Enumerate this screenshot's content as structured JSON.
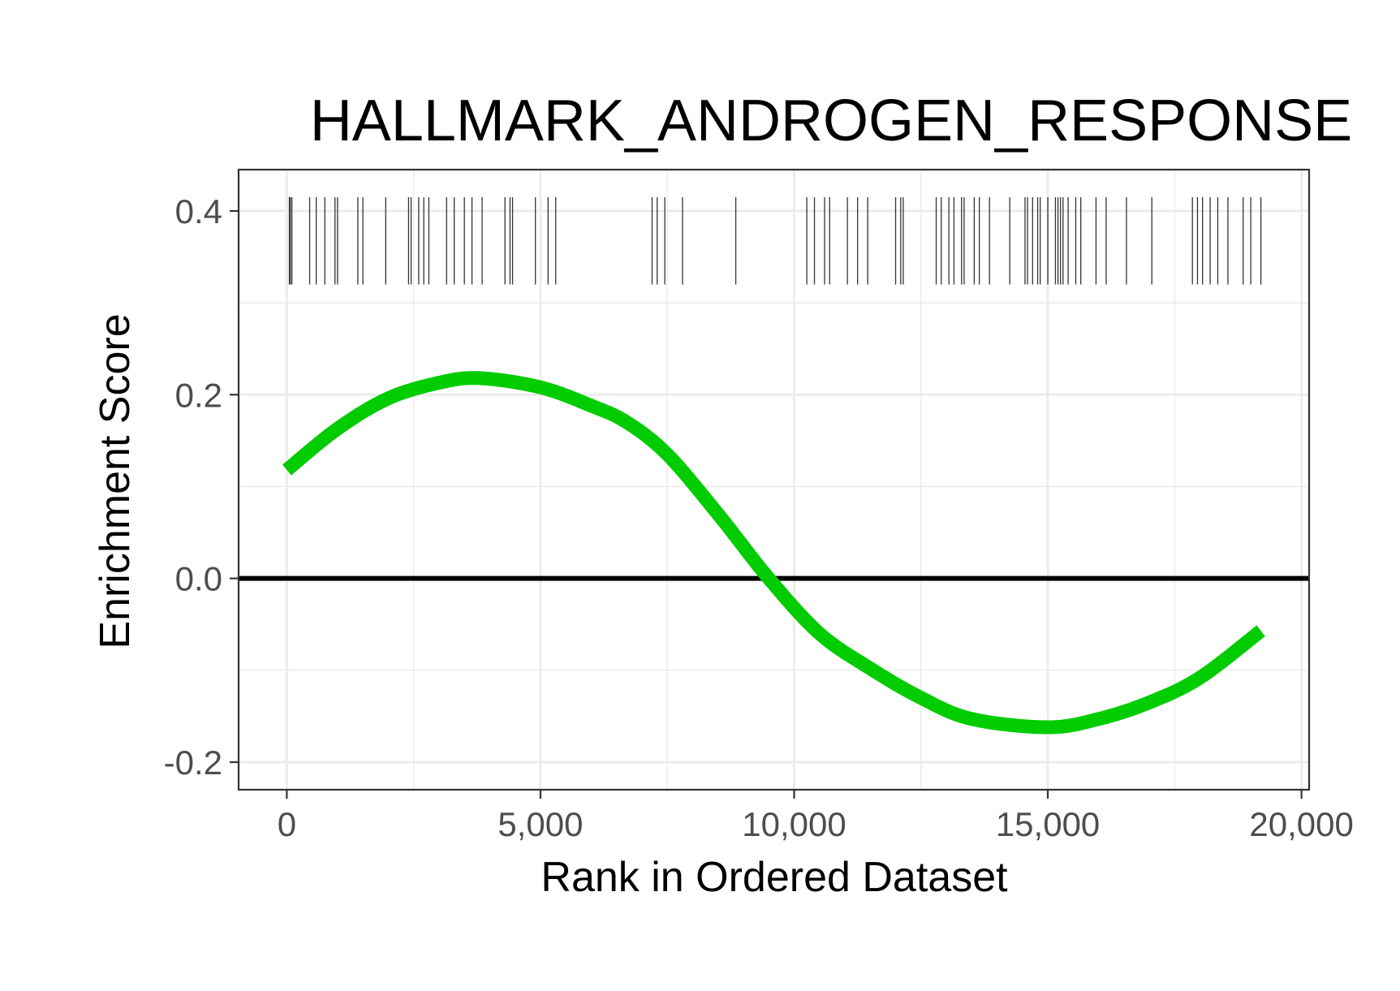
{
  "chart_data": {
    "type": "line",
    "title": "HALLMARK_ANDROGEN_RESPONSE",
    "xlabel": "Rank in Ordered Dataset",
    "ylabel": "Enrichment Score",
    "xlim": [
      -950,
      20150
    ],
    "ylim": [
      -0.23,
      0.445
    ],
    "x_ticks": [
      0,
      5000,
      10000,
      15000,
      20000
    ],
    "x_tick_labels": [
      "0",
      "5,000",
      "10,000",
      "15,000",
      "20,000"
    ],
    "y_ticks": [
      -0.2,
      0.0,
      0.2,
      0.4
    ],
    "y_tick_labels": [
      "-0.2",
      "0.0",
      "0.2",
      "0.4"
    ],
    "grid": true,
    "zero_line": 0,
    "colors": {
      "curve": "#00cc00",
      "zero_line": "#000000",
      "hits": "#333333",
      "grid": "#ebebeb",
      "border": "#333333"
    },
    "series": [
      {
        "values_x": [
          0,
          1000,
          2000,
          3000,
          3800,
          5000,
          6000,
          6700,
          7500,
          8500,
          9500,
          10500,
          11500,
          12500,
          13500,
          15000,
          16000,
          17000,
          18000,
          19200
        ],
        "values_y": [
          0.118,
          0.163,
          0.196,
          0.213,
          0.218,
          0.208,
          0.188,
          0.17,
          0.135,
          0.07,
          0.0,
          -0.06,
          -0.098,
          -0.13,
          -0.153,
          -0.162,
          -0.153,
          -0.135,
          -0.108,
          -0.057
        ]
      }
    ],
    "hit_band": [
      0.32,
      0.415
    ],
    "hits": [
      50,
      70,
      100,
      450,
      580,
      750,
      950,
      1000,
      1400,
      1500,
      1950,
      2400,
      2450,
      2600,
      2700,
      2800,
      3150,
      3300,
      3500,
      3650,
      3850,
      4300,
      4400,
      4450,
      4900,
      5150,
      5300,
      7200,
      7300,
      7450,
      7800,
      8850,
      10250,
      10400,
      10600,
      10700,
      11050,
      11250,
      11450,
      12000,
      12100,
      12150,
      12800,
      12900,
      13050,
      13150,
      13300,
      13350,
      13550,
      13650,
      13850,
      14250,
      14550,
      14600,
      14700,
      14800,
      14850,
      15000,
      15150,
      15200,
      15250,
      15300,
      15400,
      15550,
      15650,
      15950,
      16150,
      16550,
      17050,
      17850,
      17950,
      18050,
      18200,
      18350,
      18550,
      18850,
      19000,
      19200
    ]
  }
}
